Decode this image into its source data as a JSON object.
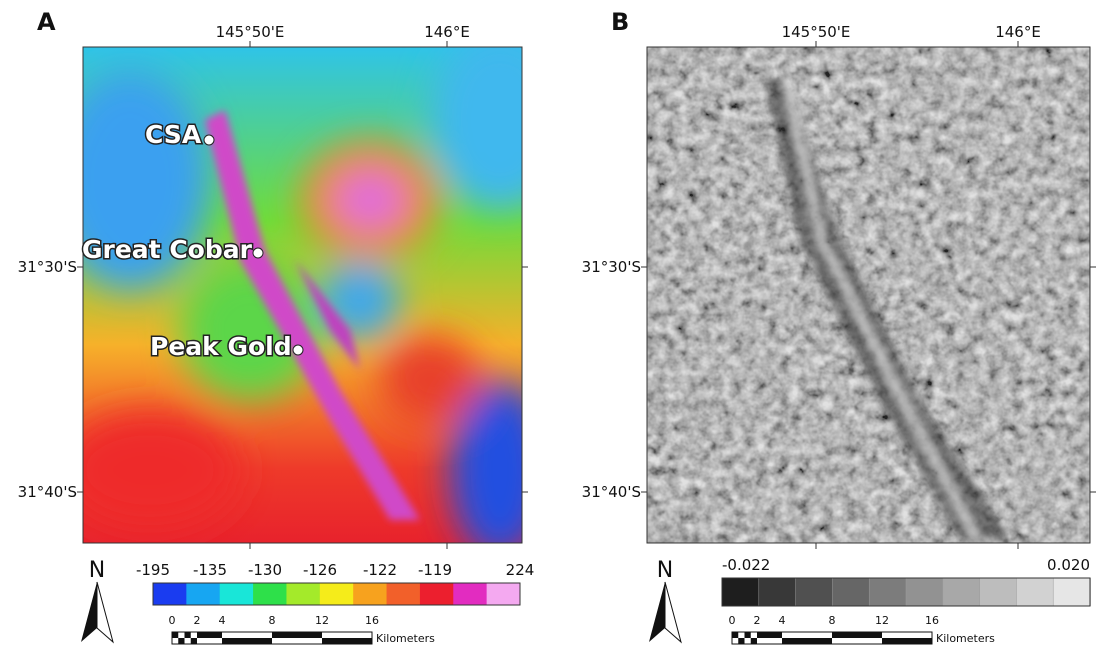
{
  "panels": [
    {
      "label": "A",
      "top_ticks": [
        "145°50'E",
        "146°E"
      ],
      "left_ticks": [
        "31°30'S",
        "31°40'S"
      ],
      "places": [
        "CSA",
        "Great Cobar",
        "Peak Gold"
      ],
      "north": "N",
      "colorbar": [
        "-195",
        "-135",
        "-130",
        "-126",
        "-122",
        "-119",
        "224"
      ],
      "scale": [
        "0",
        "2",
        "4",
        "8",
        "12",
        "16"
      ],
      "scale_unit": "Kilometers"
    },
    {
      "label": "B",
      "top_ticks": [
        "145°50'E",
        "146°E"
      ],
      "left_ticks": [
        "31°30'S",
        "31°40'S"
      ],
      "north": "N",
      "colorbar": [
        "-0.022",
        "0.020"
      ],
      "scale": [
        "0",
        "2",
        "4",
        "8",
        "12",
        "16"
      ],
      "scale_unit": "Kilometers"
    }
  ]
}
